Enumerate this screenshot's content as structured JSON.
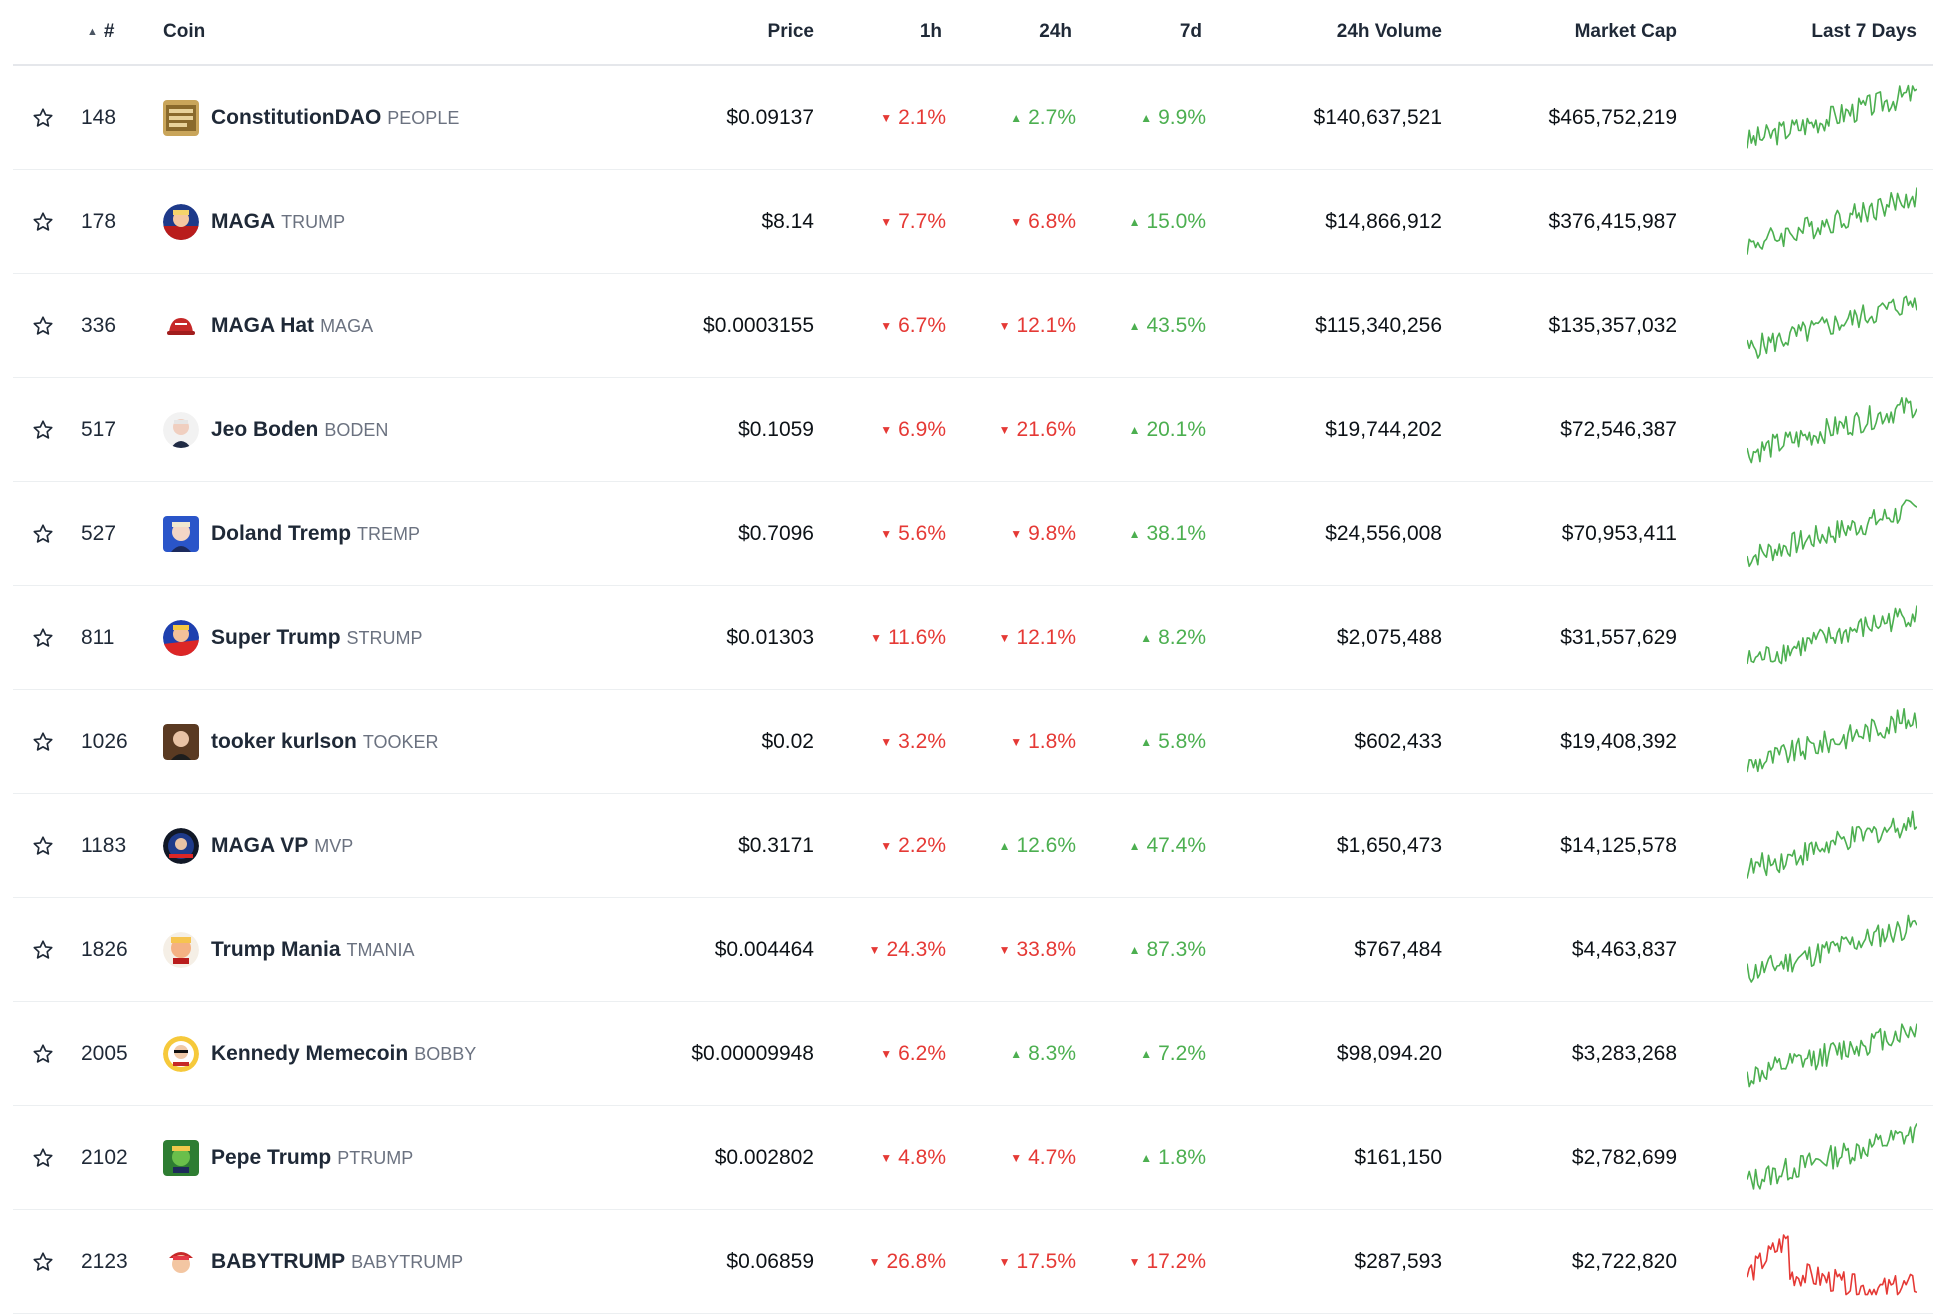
{
  "header": {
    "rank": "#",
    "coin": "Coin",
    "price": "Price",
    "h1": "1h",
    "h24": "24h",
    "d7": "7d",
    "volume": "24h Volume",
    "mcap": "Market Cap",
    "spark": "Last 7 Days"
  },
  "colors": {
    "up": "#4caf50",
    "down": "#e53935"
  },
  "rows": [
    {
      "rank": "148",
      "name": "ConstitutionDAO",
      "symbol": "PEOPLE",
      "price": "$0.09137",
      "h1": "2.1%",
      "h1_dir": "down",
      "h24": "2.7%",
      "h24_dir": "up",
      "d7": "9.9%",
      "d7_dir": "up",
      "volume": "$140,637,521",
      "mcap": "$465,752,219",
      "icon": "constitution-dao-icon",
      "trend": "up"
    },
    {
      "rank": "178",
      "name": "MAGA",
      "symbol": "TRUMP",
      "price": "$8.14",
      "h1": "7.7%",
      "h1_dir": "down",
      "h24": "6.8%",
      "h24_dir": "down",
      "d7": "15.0%",
      "d7_dir": "up",
      "volume": "$14,866,912",
      "mcap": "$376,415,987",
      "icon": "maga-trump-icon",
      "trend": "up"
    },
    {
      "rank": "336",
      "name": "MAGA Hat",
      "symbol": "MAGA",
      "price": "$0.0003155",
      "h1": "6.7%",
      "h1_dir": "down",
      "h24": "12.1%",
      "h24_dir": "down",
      "d7": "43.5%",
      "d7_dir": "up",
      "volume": "$115,340,256",
      "mcap": "$135,357,032",
      "icon": "maga-hat-icon",
      "trend": "up"
    },
    {
      "rank": "517",
      "name": "Jeo Boden",
      "symbol": "BODEN",
      "price": "$0.1059",
      "h1": "6.9%",
      "h1_dir": "down",
      "h24": "21.6%",
      "h24_dir": "down",
      "d7": "20.1%",
      "d7_dir": "up",
      "volume": "$19,744,202",
      "mcap": "$72,546,387",
      "icon": "jeo-boden-icon",
      "trend": "up"
    },
    {
      "rank": "527",
      "name": "Doland Tremp",
      "symbol": "TREMP",
      "price": "$0.7096",
      "h1": "5.6%",
      "h1_dir": "down",
      "h24": "9.8%",
      "h24_dir": "down",
      "d7": "38.1%",
      "d7_dir": "up",
      "volume": "$24,556,008",
      "mcap": "$70,953,411",
      "icon": "doland-tremp-icon",
      "trend": "up"
    },
    {
      "rank": "811",
      "name": "Super Trump",
      "symbol": "STRUMP",
      "price": "$0.01303",
      "h1": "11.6%",
      "h1_dir": "down",
      "h24": "12.1%",
      "h24_dir": "down",
      "d7": "8.2%",
      "d7_dir": "up",
      "volume": "$2,075,488",
      "mcap": "$31,557,629",
      "icon": "super-trump-icon",
      "trend": "up"
    },
    {
      "rank": "1026",
      "name": "tooker kurlson",
      "symbol": "TOOKER",
      "price": "$0.02",
      "h1": "3.2%",
      "h1_dir": "down",
      "h24": "1.8%",
      "h24_dir": "down",
      "d7": "5.8%",
      "d7_dir": "up",
      "volume": "$602,433",
      "mcap": "$19,408,392",
      "icon": "tooker-kurlson-icon",
      "trend": "up"
    },
    {
      "rank": "1183",
      "name": "MAGA VP",
      "symbol": "MVP",
      "price": "$0.3171",
      "h1": "2.2%",
      "h1_dir": "down",
      "h24": "12.6%",
      "h24_dir": "up",
      "d7": "47.4%",
      "d7_dir": "up",
      "volume": "$1,650,473",
      "mcap": "$14,125,578",
      "icon": "maga-vp-icon",
      "trend": "up"
    },
    {
      "rank": "1826",
      "name": "Trump Mania",
      "symbol": "TMANIA",
      "price": "$0.004464",
      "h1": "24.3%",
      "h1_dir": "down",
      "h24": "33.8%",
      "h24_dir": "down",
      "d7": "87.3%",
      "d7_dir": "up",
      "volume": "$767,484",
      "mcap": "$4,463,837",
      "icon": "trump-mania-icon",
      "trend": "up"
    },
    {
      "rank": "2005",
      "name": "Kennedy Memecoin",
      "symbol": "BOBBY",
      "price": "$0.00009948",
      "h1": "6.2%",
      "h1_dir": "down",
      "h24": "8.3%",
      "h24_dir": "up",
      "d7": "7.2%",
      "d7_dir": "up",
      "volume": "$98,094.20",
      "mcap": "$3,283,268",
      "icon": "kennedy-memecoin-icon",
      "trend": "up"
    },
    {
      "rank": "2102",
      "name": "Pepe Trump",
      "symbol": "PTRUMP",
      "price": "$0.002802",
      "h1": "4.8%",
      "h1_dir": "down",
      "h24": "4.7%",
      "h24_dir": "down",
      "d7": "1.8%",
      "d7_dir": "up",
      "volume": "$161,150",
      "mcap": "$2,782,699",
      "icon": "pepe-trump-icon",
      "trend": "up"
    },
    {
      "rank": "2123",
      "name": "BABYTRUMP",
      "symbol": "BABYTRUMP",
      "price": "$0.06859",
      "h1": "26.8%",
      "h1_dir": "down",
      "h24": "17.5%",
      "h24_dir": "down",
      "d7": "17.2%",
      "d7_dir": "down",
      "volume": "$287,593",
      "mcap": "$2,722,820",
      "icon": "babytrump-icon",
      "trend": "down"
    }
  ]
}
